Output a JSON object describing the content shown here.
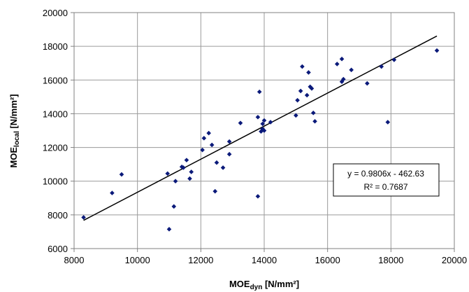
{
  "chart_data": {
    "type": "scatter",
    "xlabel": {
      "main": "MOE",
      "sub": "dyn",
      "unit": " [N/mm²]"
    },
    "ylabel": {
      "main": "MOE",
      "sub": "local",
      "unit": " [N/mm²]"
    },
    "xlim": [
      8000,
      20000
    ],
    "ylim": [
      6000,
      20000
    ],
    "xticks": [
      "8000",
      "10000",
      "12000",
      "14000",
      "16000",
      "18000",
      "20000"
    ],
    "yticks": [
      "6000",
      "8000",
      "10000",
      "12000",
      "14000",
      "16000",
      "18000",
      "20000"
    ],
    "grid": true,
    "marker_color": "#0b1a7a",
    "trendline": {
      "slope": 0.9806,
      "intercept": -462.63,
      "x_range": [
        8300,
        19450
      ]
    },
    "annotation": {
      "equation": "y = 0.9806x - 462.63",
      "r2": "R² = 0.7687"
    },
    "points": [
      [
        8300,
        7850
      ],
      [
        9200,
        9300
      ],
      [
        9500,
        10400
      ],
      [
        10950,
        10450
      ],
      [
        11000,
        7150
      ],
      [
        11150,
        8500
      ],
      [
        11200,
        10000
      ],
      [
        11400,
        10850
      ],
      [
        11450,
        10800
      ],
      [
        11550,
        11250
      ],
      [
        11650,
        10150
      ],
      [
        11700,
        10550
      ],
      [
        12050,
        11850
      ],
      [
        12100,
        12550
      ],
      [
        12250,
        12850
      ],
      [
        12350,
        12150
      ],
      [
        12450,
        9400
      ],
      [
        12500,
        11100
      ],
      [
        12700,
        10800
      ],
      [
        12900,
        11600
      ],
      [
        12900,
        12350
      ],
      [
        13250,
        13450
      ],
      [
        13800,
        13800
      ],
      [
        13850,
        15300
      ],
      [
        13900,
        12950
      ],
      [
        13950,
        13100
      ],
      [
        13950,
        13400
      ],
      [
        14000,
        13000
      ],
      [
        14000,
        13600
      ],
      [
        14200,
        13500
      ],
      [
        13800,
        9100
      ],
      [
        15000,
        13900
      ],
      [
        15050,
        14800
      ],
      [
        15150,
        15350
      ],
      [
        15200,
        16800
      ],
      [
        15350,
        15100
      ],
      [
        15400,
        16450
      ],
      [
        15450,
        15600
      ],
      [
        15500,
        15500
      ],
      [
        15550,
        14050
      ],
      [
        15600,
        13550
      ],
      [
        16300,
        16950
      ],
      [
        16450,
        15900
      ],
      [
        16450,
        17250
      ],
      [
        16500,
        16050
      ],
      [
        16750,
        16600
      ],
      [
        17250,
        15800
      ],
      [
        17700,
        16800
      ],
      [
        17900,
        13500
      ],
      [
        18100,
        17200
      ],
      [
        19450,
        17750
      ]
    ]
  }
}
